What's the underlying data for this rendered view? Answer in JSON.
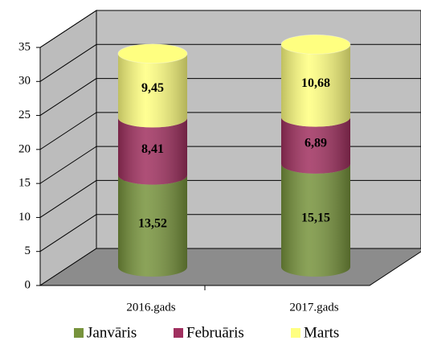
{
  "chart_data": {
    "type": "bar",
    "stacked": true,
    "three_d": true,
    "categories": [
      "2016.gads",
      "2017.gads"
    ],
    "series": [
      {
        "name": "Janvāris",
        "color": "#77933c",
        "values": [
          13.52,
          15.15
        ],
        "value_labels": [
          "13,52",
          "15,15"
        ]
      },
      {
        "name": "Februāris",
        "color": "#a0305f",
        "values": [
          8.41,
          6.89
        ],
        "value_labels": [
          "8,41",
          "6,89"
        ]
      },
      {
        "name": "Marts",
        "color": "#ffff80",
        "values": [
          9.45,
          10.68
        ],
        "value_labels": [
          "9,45",
          "10,68"
        ]
      }
    ],
    "ylim": [
      0,
      35
    ],
    "yticks": [
      0,
      5,
      10,
      15,
      20,
      25,
      30,
      35
    ],
    "grid": true,
    "legend": "bottom"
  }
}
